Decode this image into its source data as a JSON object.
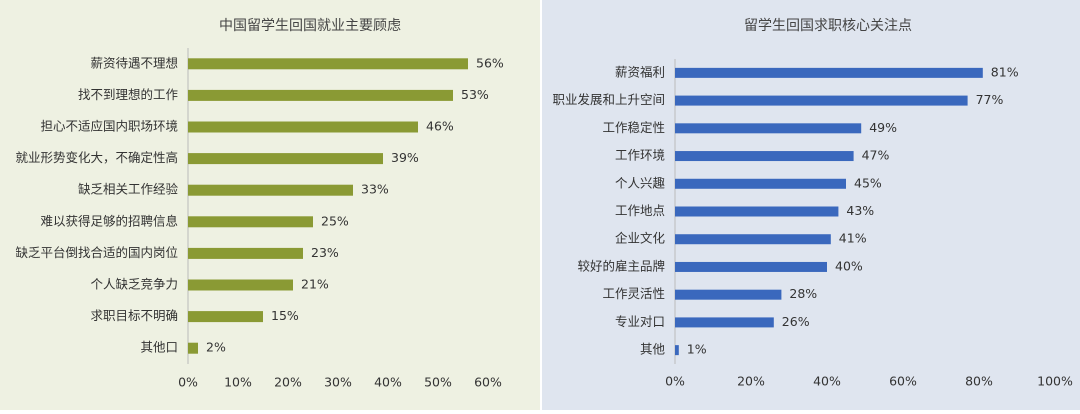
{
  "chart_data": [
    {
      "type": "bar",
      "orientation": "horizontal",
      "title": "中国留学生回国就业主要顾虑",
      "categories": [
        "薪资待遇不理想",
        "找不到理想的工作",
        "担心不适应国内职场环境",
        "就业形势变化大，不确定性高",
        "缺乏相关工作经验",
        "难以获得足够的招聘信息",
        "缺乏平台倒找合适的国内岗位",
        "个人缺乏竞争力",
        "求职目标不明确",
        "其他口"
      ],
      "values": [
        56,
        53,
        46,
        39,
        33,
        25,
        23,
        21,
        15,
        2
      ],
      "value_labels": [
        "56%",
        "53%",
        "46%",
        "39%",
        "33%",
        "25%",
        "23%",
        "21%",
        "15%",
        "2%"
      ],
      "color": "#8a9a34",
      "xlim": [
        0,
        60
      ],
      "xticks": [
        {
          "value": 0,
          "label": "0%"
        },
        {
          "value": 10,
          "label": "10%"
        },
        {
          "value": 20,
          "label": "20%"
        },
        {
          "value": 30,
          "label": "30%"
        },
        {
          "value": 40,
          "label": "40%"
        },
        {
          "value": 50,
          "label": "50%"
        },
        {
          "value": 60,
          "label": "60%"
        }
      ]
    },
    {
      "type": "bar",
      "orientation": "horizontal",
      "title": "留学生回国求职核心关注点",
      "categories": [
        "薪资福利",
        "职业发展和上升空间",
        "工作稳定性",
        "工作环境",
        "个人兴趣",
        "工作地点",
        "企业文化",
        "较好的雇主品牌",
        "工作灵活性",
        "专业对口",
        "其他"
      ],
      "values": [
        81,
        77,
        49,
        47,
        45,
        43,
        41,
        40,
        28,
        26,
        1
      ],
      "value_labels": [
        "81%",
        "77%",
        "49%",
        "47%",
        "45%",
        "43%",
        "41%",
        "40%",
        "28%",
        "26%",
        "1%"
      ],
      "color": "#3a68bd",
      "xlim": [
        0,
        100
      ],
      "xticks": [
        {
          "value": 0,
          "label": "0%"
        },
        {
          "value": 20,
          "label": "20%"
        },
        {
          "value": 40,
          "label": "40%"
        },
        {
          "value": 60,
          "label": "60%"
        },
        {
          "value": 80,
          "label": "80%"
        },
        {
          "value": 100,
          "label": "100%"
        }
      ]
    }
  ]
}
